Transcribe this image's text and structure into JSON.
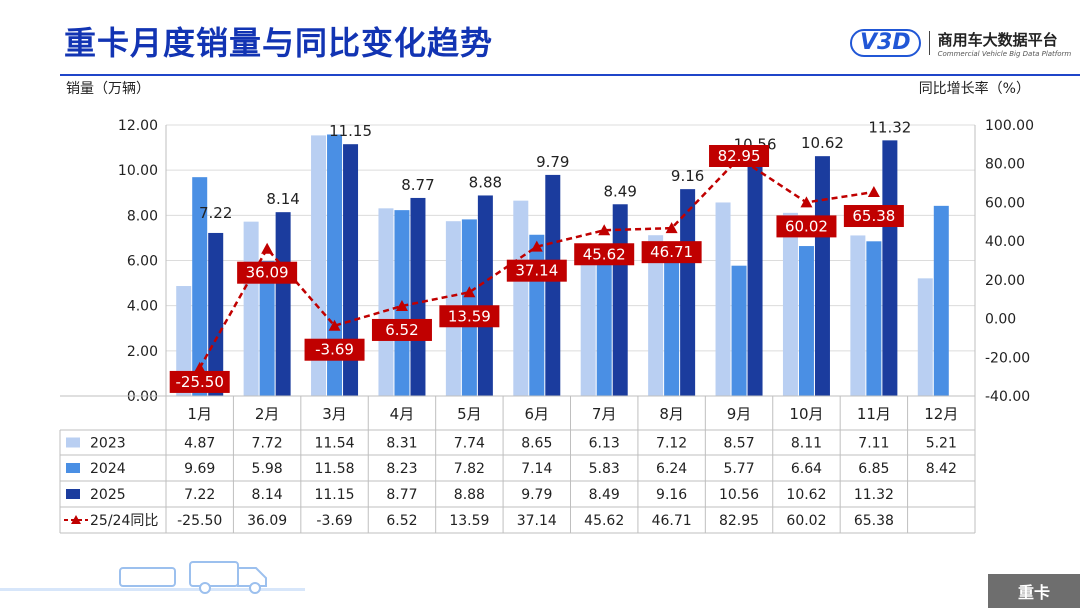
{
  "page": {
    "title": "重卡月度销量与同比变化趋势",
    "logo_mark": "V3D",
    "logo_cn": "商用车大数据平台",
    "logo_en": "Commercial Vehicle Big Data Platform",
    "footer_tag": "重卡"
  },
  "colors": {
    "title": "#1234b3",
    "s2023": "#b9cff2",
    "s2024": "#4a8fe4",
    "s2025": "#1b3c9e",
    "yoy": "#c00000"
  },
  "chart_data": {
    "type": "bar",
    "ylabel_left": "销量（万辆）",
    "ylabel_right": "同比增长率（%）",
    "categories": [
      "1月",
      "2月",
      "3月",
      "4月",
      "5月",
      "6月",
      "7月",
      "8月",
      "9月",
      "10月",
      "11月",
      "12月"
    ],
    "y_left": {
      "min": 0,
      "max": 12,
      "ticks": [
        "0.00",
        "2.00",
        "4.00",
        "6.00",
        "8.00",
        "10.00",
        "12.00"
      ]
    },
    "y_right": {
      "min": -40,
      "max": 100,
      "ticks": [
        "-40.00",
        "-20.00",
        "0.00",
        "20.00",
        "40.00",
        "60.00",
        "80.00",
        "100.00"
      ]
    },
    "series": [
      {
        "name": "2023",
        "values": [
          4.87,
          7.72,
          11.54,
          8.31,
          7.74,
          8.65,
          6.13,
          7.12,
          8.57,
          8.11,
          7.11,
          5.21
        ],
        "display": [
          "4.87",
          "7.72",
          "11.54",
          "8.31",
          "7.74",
          "8.65",
          "6.13",
          "7.12",
          "8.57",
          "8.11",
          "7.11",
          "5.21"
        ]
      },
      {
        "name": "2024",
        "values": [
          9.69,
          5.98,
          11.58,
          8.23,
          7.82,
          7.14,
          5.83,
          6.24,
          5.77,
          6.64,
          6.85,
          8.42
        ],
        "display": [
          "9.69",
          "5.98",
          "11.58",
          "8.23",
          "7.82",
          "7.14",
          "5.83",
          "6.24",
          "5.77",
          "6.64",
          "6.85",
          "8.42"
        ]
      },
      {
        "name": "2025",
        "values": [
          7.22,
          8.14,
          11.15,
          8.77,
          8.88,
          9.79,
          8.49,
          9.16,
          10.56,
          10.62,
          11.32,
          null
        ],
        "display": [
          "7.22",
          "8.14",
          "11.15",
          "8.77",
          "8.88",
          "9.79",
          "8.49",
          "9.16",
          "10.56",
          "10.62",
          "11.32",
          ""
        ]
      }
    ],
    "yoy": {
      "name": "25/24同比",
      "values": [
        -25.5,
        36.09,
        -3.69,
        6.52,
        13.59,
        37.14,
        45.62,
        46.71,
        82.95,
        60.02,
        65.38,
        null
      ],
      "display": [
        "-25.50",
        "36.09",
        "-3.69",
        "6.52",
        "13.59",
        "37.14",
        "45.62",
        "46.71",
        "82.95",
        "60.02",
        "65.38",
        ""
      ]
    },
    "grid": true
  }
}
